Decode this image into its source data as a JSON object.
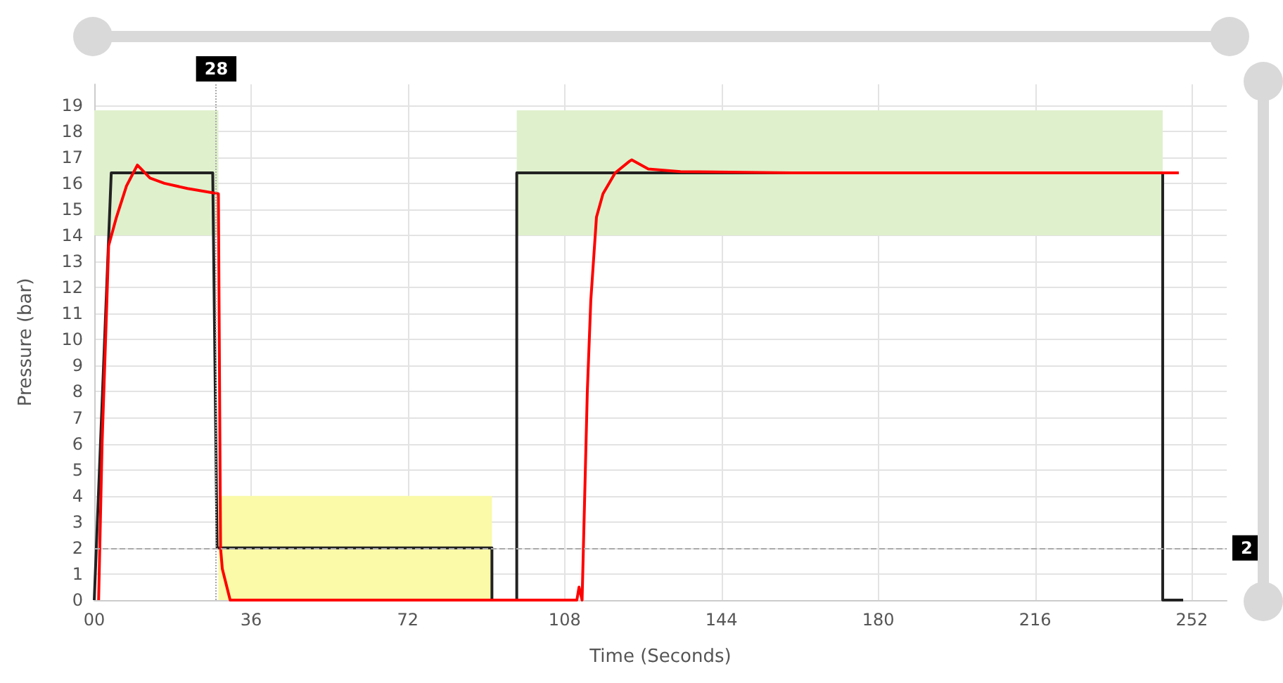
{
  "chart_data": {
    "type": "line",
    "xlabel": "Time (Seconds)",
    "ylabel": "Pressure (bar)",
    "xlim": [
      0,
      260
    ],
    "xticks": [
      {
        "value": 0,
        "label": "00"
      },
      36,
      72,
      108,
      144,
      180,
      216,
      252
    ],
    "ylim": [
      0,
      19.8
    ],
    "yticks": [
      0,
      1,
      2,
      3,
      4,
      5,
      6,
      7,
      8,
      9,
      10,
      11,
      12,
      13,
      14,
      15,
      16,
      17,
      18,
      19
    ],
    "grid": true,
    "marker": "none",
    "line_style": "solid",
    "series": [
      {
        "type": "area",
        "color": "#dff0cc",
        "x": [
          0,
          28.5
        ],
        "values": [
          null,
          null
        ],
        "lower": [
          14,
          14
        ],
        "upper": [
          18.8,
          18.8
        ]
      },
      {
        "type": "area",
        "color": "#dff0cc",
        "x": [
          97,
          245.3
        ],
        "values": [
          null,
          null
        ],
        "lower": [
          14,
          14
        ],
        "upper": [
          18.8,
          18.8
        ]
      },
      {
        "type": "area",
        "color": "#fafaa8",
        "x": [
          28.5,
          91.3
        ],
        "values": [
          null,
          null
        ],
        "lower": [
          0,
          0
        ],
        "upper": [
          4,
          4
        ]
      },
      {
        "color": "#222222",
        "x": [
          0,
          3.9,
          27.2,
          28.2,
          91.3,
          91.3,
          97,
          97,
          245.3,
          245.3,
          250
        ],
        "values": [
          0,
          16.4,
          16.4,
          2,
          2,
          0,
          0,
          16.4,
          16.4,
          0,
          0
        ]
      },
      {
        "color": "#ff0000",
        "x": [
          1,
          1.8,
          2.9,
          3.3,
          5.1,
          7.4,
          9.9,
          12.8,
          16.1,
          21.4,
          28.5,
          29,
          29.4,
          31.2,
          110.8,
          111.3,
          112,
          113.2,
          114,
          115.3,
          116.8,
          119.6,
          122.9,
          123.4,
          127.2,
          134.6,
          160,
          200,
          249
        ],
        "values": [
          0,
          6,
          11.5,
          13.6,
          14.7,
          15.9,
          16.7,
          16.2,
          16,
          15.8,
          15.6,
          2,
          1.2,
          0,
          0,
          0.5,
          0,
          8,
          11.5,
          14.7,
          15.6,
          16.4,
          16.85,
          16.9,
          16.55,
          16.45,
          16.4,
          16.4,
          16.4
        ]
      }
    ],
    "ref_lines": [
      {
        "axis": "x",
        "value": 28,
        "label": "28",
        "color": "#aaaaaa",
        "line_style": "dotted"
      },
      {
        "axis": "y",
        "value": 2,
        "label": "2",
        "color": "#aaaaaa",
        "line_style": "dashed"
      }
    ]
  }
}
